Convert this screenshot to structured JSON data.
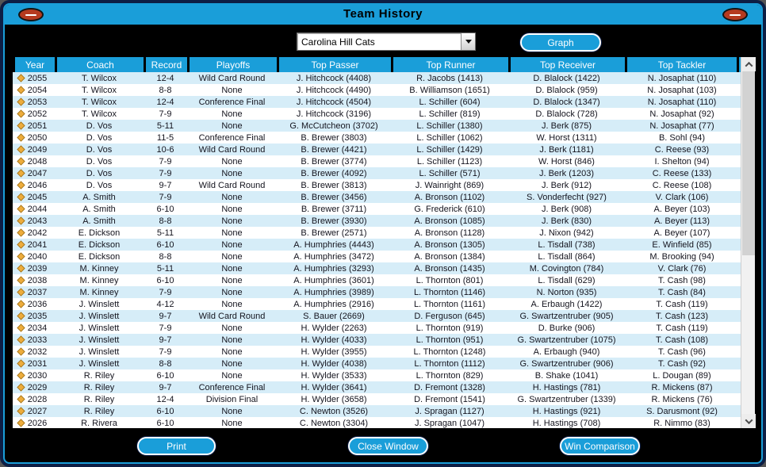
{
  "window": {
    "title": "Team History"
  },
  "controls": {
    "team_selector_value": "Carolina Hill Cats",
    "graph_label": "Graph"
  },
  "icons": {
    "window_button_left": "football-icon",
    "window_button_right": "football-icon",
    "dropdown_arrow": "▼",
    "scroll_up": "⌃",
    "scroll_down": "⌄",
    "row_marker": "◆"
  },
  "colors": {
    "accent_cyan": "#1a9ed9",
    "frame_navy": "#0d1e44",
    "row_alt_blue": "#d6edf8",
    "diamond_gold": "#edac3c",
    "football_red": "#b53a1f"
  },
  "table": {
    "columns": [
      "Year",
      "Coach",
      "Record",
      "Playoffs",
      "Top Passer",
      "Top Runner",
      "Top Receiver",
      "Top Tackler"
    ],
    "rows": [
      [
        "2055",
        "T. Wilcox",
        "12-4",
        "Wild Card Round",
        "J. Hitchcock (4408)",
        "R. Jacobs (1413)",
        "D. Blalock (1422)",
        "N. Josaphat (110)"
      ],
      [
        "2054",
        "T. Wilcox",
        "8-8",
        "None",
        "J. Hitchcock (4490)",
        "B. Williamson (1651)",
        "D. Blalock (959)",
        "N. Josaphat (103)"
      ],
      [
        "2053",
        "T. Wilcox",
        "12-4",
        "Conference Final",
        "J. Hitchcock (4504)",
        "L. Schiller (604)",
        "D. Blalock (1347)",
        "N. Josaphat (110)"
      ],
      [
        "2052",
        "T. Wilcox",
        "7-9",
        "None",
        "J. Hitchcock (3196)",
        "L. Schiller (819)",
        "D. Blalock (728)",
        "N. Josaphat (92)"
      ],
      [
        "2051",
        "D. Vos",
        "5-11",
        "None",
        "G. McCutcheon (3702)",
        "L. Schiller (1380)",
        "J. Berk (875)",
        "N. Josaphat (77)"
      ],
      [
        "2050",
        "D. Vos",
        "11-5",
        "Conference Final",
        "B. Brewer (3803)",
        "L. Schiller (1062)",
        "W. Horst (1311)",
        "B. Sohl (94)"
      ],
      [
        "2049",
        "D. Vos",
        "10-6",
        "Wild Card Round",
        "B. Brewer (4421)",
        "L. Schiller (1429)",
        "J. Berk (1181)",
        "C. Reese (93)"
      ],
      [
        "2048",
        "D. Vos",
        "7-9",
        "None",
        "B. Brewer (3774)",
        "L. Schiller (1123)",
        "W. Horst (846)",
        "I. Shelton (94)"
      ],
      [
        "2047",
        "D. Vos",
        "7-9",
        "None",
        "B. Brewer (4092)",
        "L. Schiller (571)",
        "J. Berk (1203)",
        "C. Reese (133)"
      ],
      [
        "2046",
        "D. Vos",
        "9-7",
        "Wild Card Round",
        "B. Brewer (3813)",
        "J. Wainright (869)",
        "J. Berk (912)",
        "C. Reese (108)"
      ],
      [
        "2045",
        "A. Smith",
        "7-9",
        "None",
        "B. Brewer (3456)",
        "A. Bronson (1102)",
        "S. Vonderfecht (927)",
        "V. Clark (106)"
      ],
      [
        "2044",
        "A. Smith",
        "6-10",
        "None",
        "B. Brewer (3711)",
        "G. Frederick (610)",
        "J. Berk (908)",
        "A. Beyer (103)"
      ],
      [
        "2043",
        "A. Smith",
        "8-8",
        "None",
        "B. Brewer (3930)",
        "A. Bronson (1085)",
        "J. Berk (830)",
        "A. Beyer (113)"
      ],
      [
        "2042",
        "E. Dickson",
        "5-11",
        "None",
        "B. Brewer (2571)",
        "A. Bronson (1128)",
        "J. Nixon (942)",
        "A. Beyer (107)"
      ],
      [
        "2041",
        "E. Dickson",
        "6-10",
        "None",
        "A. Humphries (4443)",
        "A. Bronson (1305)",
        "L. Tisdall (738)",
        "E. Winfield (85)"
      ],
      [
        "2040",
        "E. Dickson",
        "8-8",
        "None",
        "A. Humphries (3472)",
        "A. Bronson (1384)",
        "L. Tisdall (864)",
        "M. Brooking (94)"
      ],
      [
        "2039",
        "M. Kinney",
        "5-11",
        "None",
        "A. Humphries (3293)",
        "A. Bronson (1435)",
        "M. Covington (784)",
        "V. Clark (76)"
      ],
      [
        "2038",
        "M. Kinney",
        "6-10",
        "None",
        "A. Humphries (3601)",
        "L. Thornton (801)",
        "L. Tisdall (629)",
        "T. Cash (98)"
      ],
      [
        "2037",
        "M. Kinney",
        "7-9",
        "None",
        "A. Humphries (3989)",
        "L. Thornton (1146)",
        "N. Norton (935)",
        "T. Cash (84)"
      ],
      [
        "2036",
        "J. Winslett",
        "4-12",
        "None",
        "A. Humphries (2916)",
        "L. Thornton (1161)",
        "A. Erbaugh (1422)",
        "T. Cash (119)"
      ],
      [
        "2035",
        "J. Winslett",
        "9-7",
        "Wild Card Round",
        "S. Bauer (2669)",
        "D. Ferguson (645)",
        "G. Swartzentruber (905)",
        "T. Cash (123)"
      ],
      [
        "2034",
        "J. Winslett",
        "7-9",
        "None",
        "H. Wylder (2263)",
        "L. Thornton (919)",
        "D. Burke (906)",
        "T. Cash (119)"
      ],
      [
        "2033",
        "J. Winslett",
        "9-7",
        "None",
        "H. Wylder (4033)",
        "L. Thornton (951)",
        "G. Swartzentruber (1075)",
        "T. Cash (108)"
      ],
      [
        "2032",
        "J. Winslett",
        "7-9",
        "None",
        "H. Wylder (3955)",
        "L. Thornton (1248)",
        "A. Erbaugh (940)",
        "T. Cash (96)"
      ],
      [
        "2031",
        "J. Winslett",
        "8-8",
        "None",
        "H. Wylder (4038)",
        "L. Thornton (1112)",
        "G. Swartzentruber (906)",
        "T. Cash (92)"
      ],
      [
        "2030",
        "R. Riley",
        "6-10",
        "None",
        "H. Wylder (3533)",
        "L. Thornton (829)",
        "B. Shake (1041)",
        "L. Dougan (89)"
      ],
      [
        "2029",
        "R. Riley",
        "9-7",
        "Conference Final",
        "H. Wylder (3641)",
        "D. Fremont (1328)",
        "H. Hastings (781)",
        "R. Mickens (87)"
      ],
      [
        "2028",
        "R. Riley",
        "12-4",
        "Division Final",
        "H. Wylder (3658)",
        "D. Fremont (1541)",
        "G. Swartzentruber (1339)",
        "R. Mickens (76)"
      ],
      [
        "2027",
        "R. Riley",
        "6-10",
        "None",
        "C. Newton (3526)",
        "J. Spragan (1127)",
        "H. Hastings (921)",
        "S. Darusmont (92)"
      ],
      [
        "2026",
        "R. Rivera",
        "6-10",
        "None",
        "C. Newton (3304)",
        "J. Spragan (1047)",
        "H. Hastings (708)",
        "R. Nimmo (83)"
      ]
    ]
  },
  "footer": {
    "print_label": "Print",
    "close_label": "Close Window",
    "win_comparison_label": "Win Comparison"
  }
}
